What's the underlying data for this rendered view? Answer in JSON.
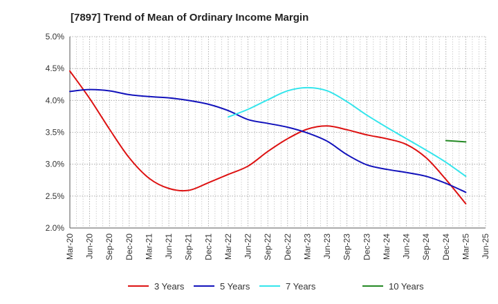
{
  "chart_data": {
    "type": "line",
    "title": "[7897]  Trend of Mean of Ordinary Income Margin",
    "xlabel": "",
    "ylabel": "",
    "x_tick_labels": [
      "Mar-20",
      "Jun-20",
      "Sep-20",
      "Dec-20",
      "Mar-21",
      "Jun-21",
      "Sep-21",
      "Dec-21",
      "Mar-22",
      "Jun-22",
      "Sep-22",
      "Dec-22",
      "Mar-23",
      "Jun-23",
      "Sep-23",
      "Dec-23",
      "Mar-24",
      "Jun-24",
      "Sep-24",
      "Dec-24",
      "Mar-25",
      "Jun-25"
    ],
    "y_tick_labels": [
      "2.0%",
      "2.5%",
      "3.0%",
      "3.5%",
      "4.0%",
      "4.5%",
      "5.0%"
    ],
    "y_ticks": [
      2.0,
      2.5,
      3.0,
      3.5,
      4.0,
      4.5,
      5.0
    ],
    "ylim": [
      2.0,
      5.0
    ],
    "grid": true,
    "legend_position": "bottom",
    "series": [
      {
        "name": "3 Years",
        "color": "#dd1111",
        "values": [
          4.46,
          4.03,
          3.55,
          3.1,
          2.78,
          2.62,
          2.59,
          2.71,
          2.84,
          2.97,
          3.2,
          3.4,
          3.55,
          3.6,
          3.54,
          3.46,
          3.4,
          3.31,
          3.1,
          2.76,
          2.38,
          null
        ]
      },
      {
        "name": "5 Years",
        "color": "#1111bb",
        "values": [
          4.14,
          4.17,
          4.15,
          4.09,
          4.06,
          4.04,
          4.0,
          3.94,
          3.84,
          3.7,
          3.64,
          3.58,
          3.49,
          3.36,
          3.15,
          2.99,
          2.92,
          2.87,
          2.81,
          2.7,
          2.56,
          null
        ]
      },
      {
        "name": "7 Years",
        "color": "#33e5ec",
        "values": [
          null,
          null,
          null,
          null,
          null,
          null,
          null,
          null,
          3.74,
          3.86,
          4.01,
          4.15,
          4.2,
          4.15,
          3.98,
          3.77,
          3.58,
          3.4,
          3.22,
          3.03,
          2.81,
          null
        ]
      },
      {
        "name": "10 Years",
        "color": "#228822",
        "values": [
          null,
          null,
          null,
          null,
          null,
          null,
          null,
          null,
          null,
          null,
          null,
          null,
          null,
          null,
          null,
          null,
          null,
          null,
          null,
          3.37,
          3.35,
          null
        ]
      }
    ]
  }
}
